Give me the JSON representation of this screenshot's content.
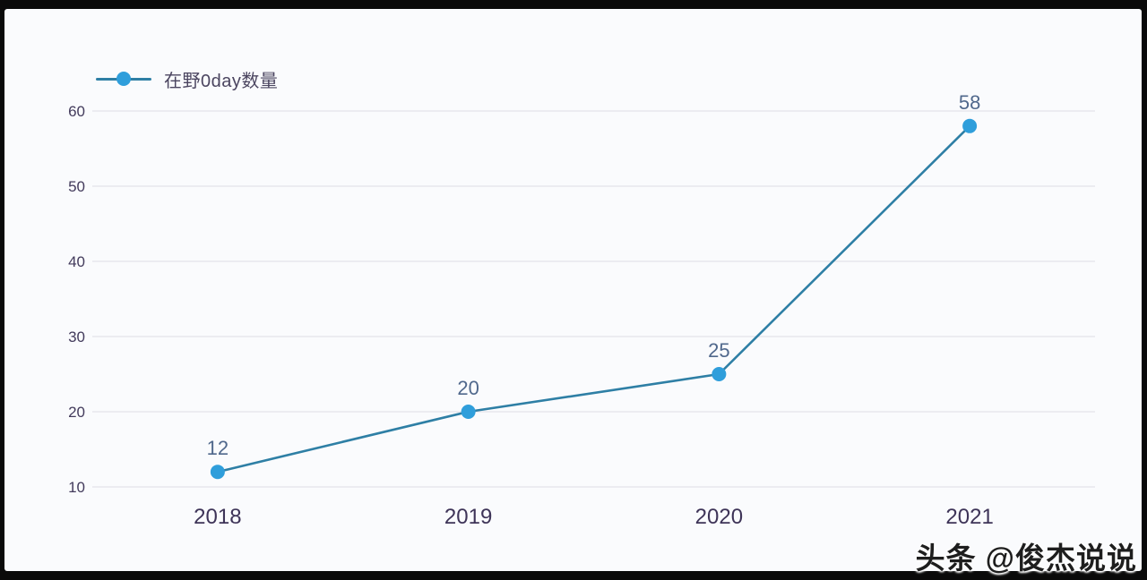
{
  "frame": {
    "background_color": "#0a0a0a",
    "panel_color": "#fafbfd"
  },
  "legend": {
    "label": "在野0day数量",
    "line_color": "#2e7fa5",
    "marker_color": "#2f9edb"
  },
  "chart_data": {
    "type": "line",
    "title": "",
    "xlabel": "",
    "ylabel": "",
    "categories": [
      "2018",
      "2019",
      "2020",
      "2021"
    ],
    "series": [
      {
        "name": "在野0day数量",
        "values": [
          12,
          20,
          25,
          58
        ]
      }
    ],
    "data_labels": [
      12,
      20,
      25,
      58
    ],
    "y_ticks": [
      10,
      20,
      30,
      40,
      50,
      60
    ],
    "ylim": [
      10,
      60
    ],
    "grid": true,
    "legend_position": "top-left",
    "style": {
      "line_color": "#2e7fa5",
      "point_color": "#2f9edb",
      "grid_color": "#e3e3ea",
      "value_label_color": "#50688c",
      "y_tick_color": "#433b5c",
      "x_tick_color": "#3e3458"
    }
  },
  "watermark": {
    "text": "头条 @俊杰说说"
  }
}
